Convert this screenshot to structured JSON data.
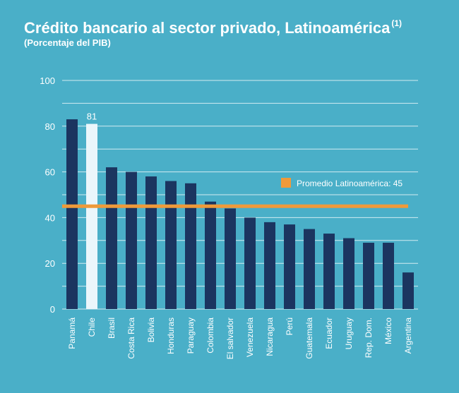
{
  "page": {
    "title": "Crédito bancario al sector privado, Latinoamérica",
    "title_note": "(1)",
    "subtitle": "(Porcentaje del PIB)"
  },
  "colors": {
    "background": "#4aafc8",
    "bar": "#1b3560",
    "highlight_bar": "#eaf6fb",
    "average_line": "#ef9a3a",
    "gridline": "#ffffff",
    "text": "#ffffff"
  },
  "chart_data": {
    "type": "bar",
    "categories": [
      "Panamá",
      "Chile",
      "Brasil",
      "Costa Rica",
      "Bolivia",
      "Honduras",
      "Paraguay",
      "Colombia",
      "El salvador",
      "Venezuela",
      "Nicaragua",
      "Perú",
      "Guatemala",
      "Ecuador",
      "Uruguay",
      "Rep. Dom.",
      "México",
      "Argentina"
    ],
    "values": [
      83,
      81,
      62,
      60,
      58,
      56,
      55,
      47,
      44,
      40,
      38,
      37,
      35,
      33,
      31,
      29,
      29,
      16
    ],
    "highlight": {
      "category": "Chile",
      "value_label": "81"
    },
    "ylim": [
      0,
      100
    ],
    "yticks": [
      0,
      20,
      40,
      60,
      80,
      100
    ],
    "grid": true,
    "average": {
      "label": "Promedio Latinoamérica: 45",
      "value": 45
    }
  }
}
